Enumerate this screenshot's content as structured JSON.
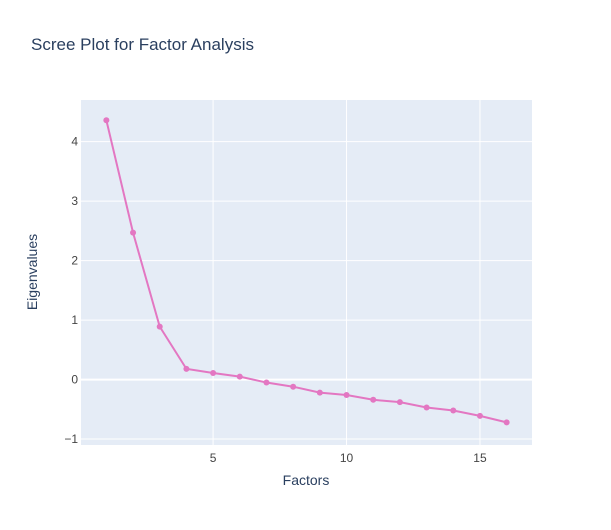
{
  "chart_data": {
    "type": "line",
    "title": "Scree Plot for Factor Analysis",
    "xlabel": "Factors",
    "ylabel": "Eigenvalues",
    "xlim": [
      0.05,
      16.95
    ],
    "ylim": [
      -1.1,
      4.7
    ],
    "x_ticks": [
      5,
      10,
      15
    ],
    "y_ticks": [
      -1,
      0,
      1,
      2,
      3,
      4
    ],
    "x_tick_labels": [
      "5",
      "10",
      "15"
    ],
    "y_tick_labels": [
      "−1",
      "0",
      "1",
      "2",
      "3",
      "4"
    ],
    "grid": true,
    "legend": "none",
    "series": [
      {
        "color": "#e377c2",
        "x": [
          1,
          2,
          3,
          4,
          5,
          6,
          7,
          8,
          9,
          10,
          11,
          12,
          13,
          14,
          15,
          16
        ],
        "y": [
          4.36,
          2.47,
          0.89,
          0.18,
          0.11,
          0.05,
          -0.05,
          -0.12,
          -0.22,
          -0.26,
          -0.34,
          -0.38,
          -0.47,
          -0.52,
          -0.61,
          -0.72
        ]
      }
    ]
  },
  "colors": {
    "plot_bg": "#e5ecf6",
    "grid": "#ffffff",
    "text": "#2a3f5f",
    "series": "#e377c2"
  }
}
